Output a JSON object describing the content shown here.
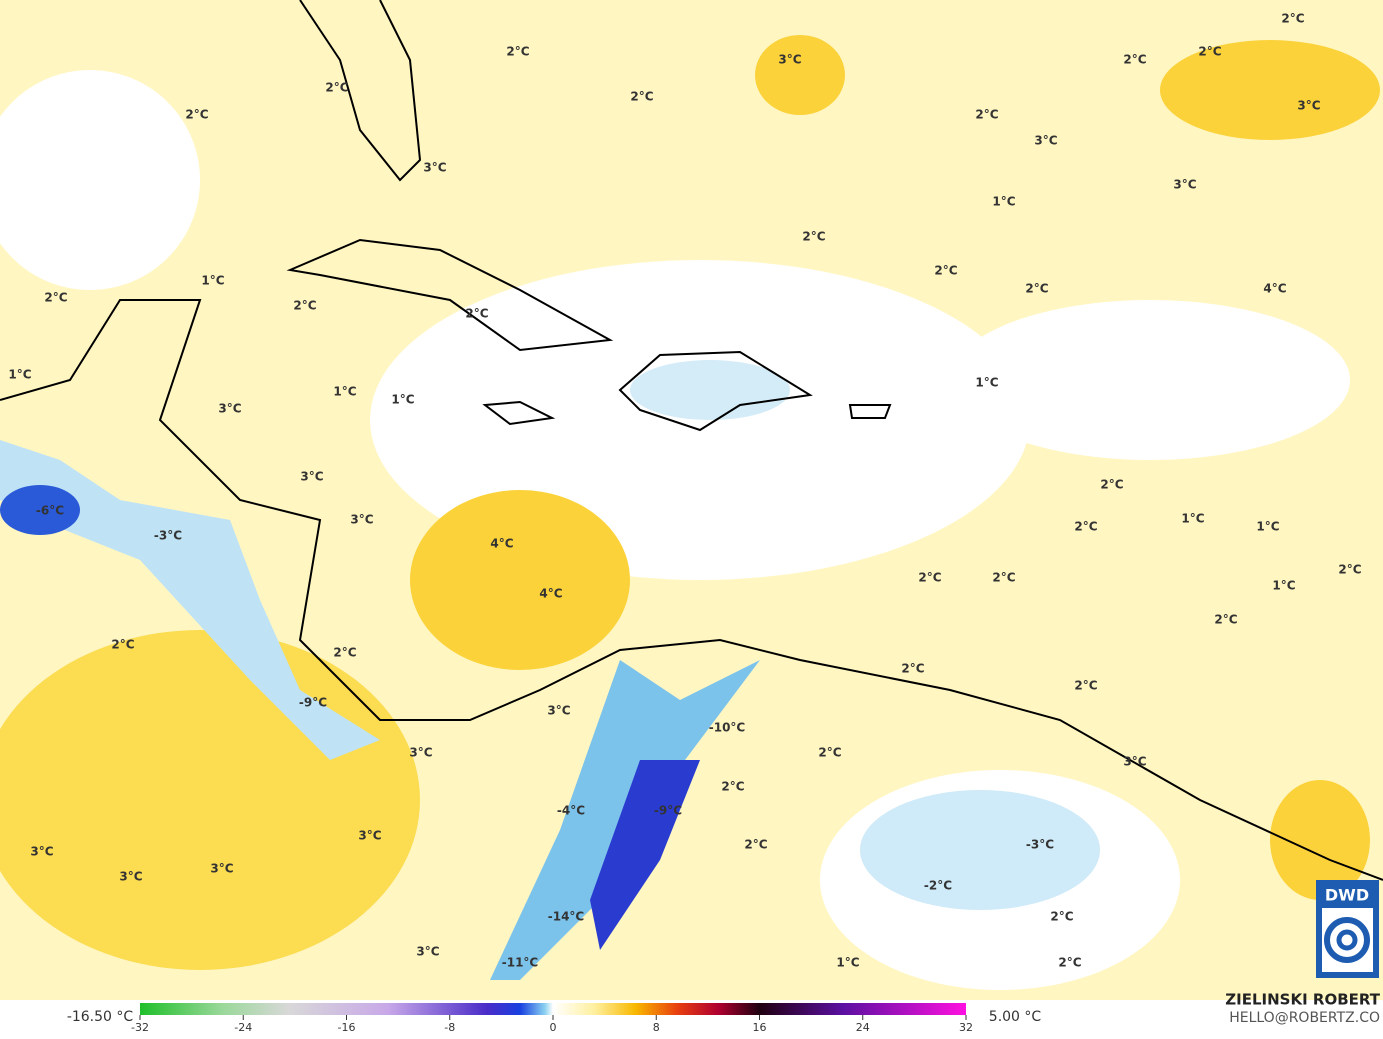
{
  "map": {
    "labels": [
      "2°C",
      "3°C",
      "2°C",
      "2°C",
      "2°C",
      "2°C",
      "2°C",
      "3°C",
      "2°C",
      "2°C",
      "3°C",
      "3°C",
      "3°C",
      "1°C",
      "2°C",
      "2°C",
      "1°C",
      "2°C",
      "2°C",
      "4°C",
      "2°C",
      "2°C",
      "1°C",
      "1°C",
      "1°C",
      "1°C",
      "3°C",
      "3°C",
      "2°C",
      "3°C",
      "1°C",
      "2°C",
      "1°C",
      "-6°C",
      "-3°C",
      "4°C",
      "2°C",
      "2°C",
      "2°C",
      "1°C",
      "4°C",
      "2°C",
      "2°C",
      "2°C",
      "2°C",
      "2°C",
      "-9°C",
      "3°C",
      "-10°C",
      "3°C",
      "2°C",
      "3°C",
      "2°C",
      "-4°C",
      "-9°C",
      "3°C",
      "-3°C",
      "2°C",
      "3°C",
      "3°C",
      "3°C",
      "-2°C",
      "-14°C",
      "2°C",
      "3°C",
      "-11°C",
      "1°C",
      "2°C"
    ]
  },
  "colorbar": {
    "min_label": "-16.50 °C",
    "max_label": "5.00 °C",
    "ticks": [
      -32,
      -24,
      -16,
      -8,
      0,
      8,
      16,
      24,
      32
    ]
  },
  "credit": {
    "name": "ZIELINSKI ROBERT",
    "contact": "HELLO@ROBERTZ.CO"
  },
  "logo": {
    "text": "DWD"
  }
}
